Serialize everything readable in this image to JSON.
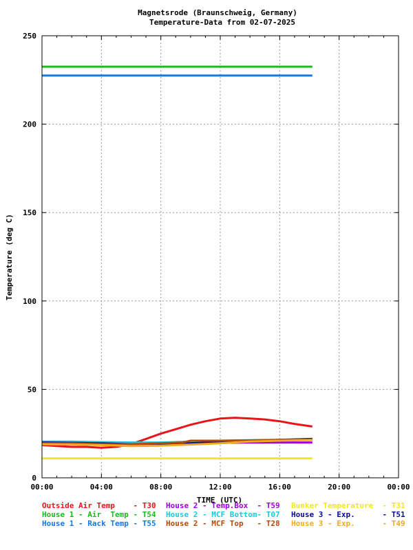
{
  "chart_data": {
    "type": "line",
    "title": "Magnetsrode (Braunschweig, Germany)",
    "subtitle": "Temperature-Data from 02-07-2025",
    "xlabel": "TIME (UTC)",
    "ylabel": "Temperature (deg C)",
    "xlim": [
      0,
      24
    ],
    "ylim": [
      0,
      250
    ],
    "grid": true,
    "legend_position": "bottom",
    "x_ticks": [
      {
        "value": 0,
        "label": "00:00"
      },
      {
        "value": 4,
        "label": "04:00"
      },
      {
        "value": 8,
        "label": "08:00"
      },
      {
        "value": 12,
        "label": "12:00"
      },
      {
        "value": 16,
        "label": "16:00"
      },
      {
        "value": 20,
        "label": "20:00"
      },
      {
        "value": 24,
        "label": "00:00"
      }
    ],
    "y_ticks": [
      {
        "value": 0,
        "label": "0"
      },
      {
        "value": 50,
        "label": "50"
      },
      {
        "value": 100,
        "label": "100"
      },
      {
        "value": 150,
        "label": "150"
      },
      {
        "value": 200,
        "label": "200"
      },
      {
        "value": 250,
        "label": "250"
      }
    ],
    "series": [
      {
        "name": "Outside Air Temp",
        "code": "T30",
        "color": "#e8141a",
        "x": [
          0,
          1,
          2,
          3,
          4,
          5,
          6,
          7,
          8,
          9,
          10,
          11,
          12,
          13,
          14,
          15,
          16,
          17,
          18.2
        ],
        "y": [
          18.5,
          18,
          17.5,
          17.5,
          17,
          17.5,
          19,
          22,
          25,
          27.5,
          30,
          32,
          33.5,
          34,
          33.5,
          33,
          32,
          30.5,
          29
        ]
      },
      {
        "name": "House 2 - Temp.Box",
        "code": "T59",
        "color": "#a000e0",
        "x": [
          0,
          2,
          4,
          6,
          8,
          10,
          12,
          14,
          16,
          18.2
        ],
        "y": [
          19.5,
          19.5,
          19.3,
          19.3,
          19.4,
          19.6,
          19.8,
          19.9,
          20,
          20
        ]
      },
      {
        "name": "Bunker Temperature",
        "code": "T31",
        "color": "#f0e628",
        "x": [
          0,
          4,
          8,
          12,
          16,
          18.2
        ],
        "y": [
          11,
          11,
          11,
          11,
          11,
          11
        ]
      },
      {
        "name": "House 1 - Air  Temp",
        "code": "T54",
        "color": "#1cb81c",
        "x": [
          0,
          4,
          8,
          12,
          16,
          18.2
        ],
        "y": [
          232.5,
          232.5,
          232.5,
          232.5,
          232.5,
          232.5
        ]
      },
      {
        "name": "House 2 - MCF Bottom",
        "code": "T07",
        "color": "#1ec8d8",
        "x": [
          0,
          2,
          4,
          6,
          8,
          10,
          12,
          14,
          16,
          18.2
        ],
        "y": [
          20.5,
          20.5,
          20.2,
          20,
          20,
          20.5,
          21,
          21.3,
          21.5,
          21.5
        ]
      },
      {
        "name": "House 3 - Exp.",
        "code": "T51",
        "color": "#0a0a96",
        "x": [
          0,
          2,
          4,
          6,
          8,
          10,
          12,
          14,
          16,
          18.2
        ],
        "y": [
          20,
          19.8,
          19.5,
          19,
          19,
          19.5,
          20.2,
          20.8,
          21.5,
          22
        ]
      },
      {
        "name": "House 1 - Rack Temp",
        "code": "T55",
        "color": "#1478e6",
        "x": [
          0,
          4,
          8,
          12,
          16,
          18.2
        ],
        "y": [
          227.5,
          227.5,
          227.5,
          227.5,
          227.5,
          227.5
        ]
      },
      {
        "name": "House 2 - MCF Top",
        "code": "T28",
        "color": "#b44a0a",
        "x": [
          0,
          2,
          4,
          6,
          8,
          9.5,
          10,
          12,
          14,
          16,
          18.2
        ],
        "y": [
          19.5,
          19.5,
          19,
          19,
          19.5,
          20,
          21,
          21,
          21.2,
          21.5,
          21.5
        ]
      },
      {
        "name": "House 3 - Exp.",
        "code": "T49",
        "color": "#f2aa1e",
        "x": [
          0,
          2,
          4,
          6,
          8,
          10,
          12,
          14,
          16,
          18.2
        ],
        "y": [
          19,
          18.8,
          18.5,
          18,
          18.2,
          18.8,
          19.5,
          20.5,
          21,
          21.5
        ]
      }
    ],
    "legend": [
      {
        "label": "Outside Air Temp    - T30",
        "color": "#e8141a"
      },
      {
        "label": "House 2 - Temp.Box  - T59",
        "color": "#a000e0"
      },
      {
        "label": "Bunker Temperature  - T31",
        "color": "#f0e628"
      },
      {
        "label": "House 1 - Air  Temp - T54",
        "color": "#1cb81c"
      },
      {
        "label": "House 2 - MCF Bottom- T07",
        "color": "#1ec8d8"
      },
      {
        "label": "House 3 - Exp.      - T51",
        "color": "#0a0a96"
      },
      {
        "label": "House 1 - Rack Temp - T55",
        "color": "#1478e6"
      },
      {
        "label": "House 2 - MCF Top   - T28",
        "color": "#b44a0a"
      },
      {
        "label": "House 3 - Exp.      - T49",
        "color": "#f2aa1e"
      }
    ]
  }
}
